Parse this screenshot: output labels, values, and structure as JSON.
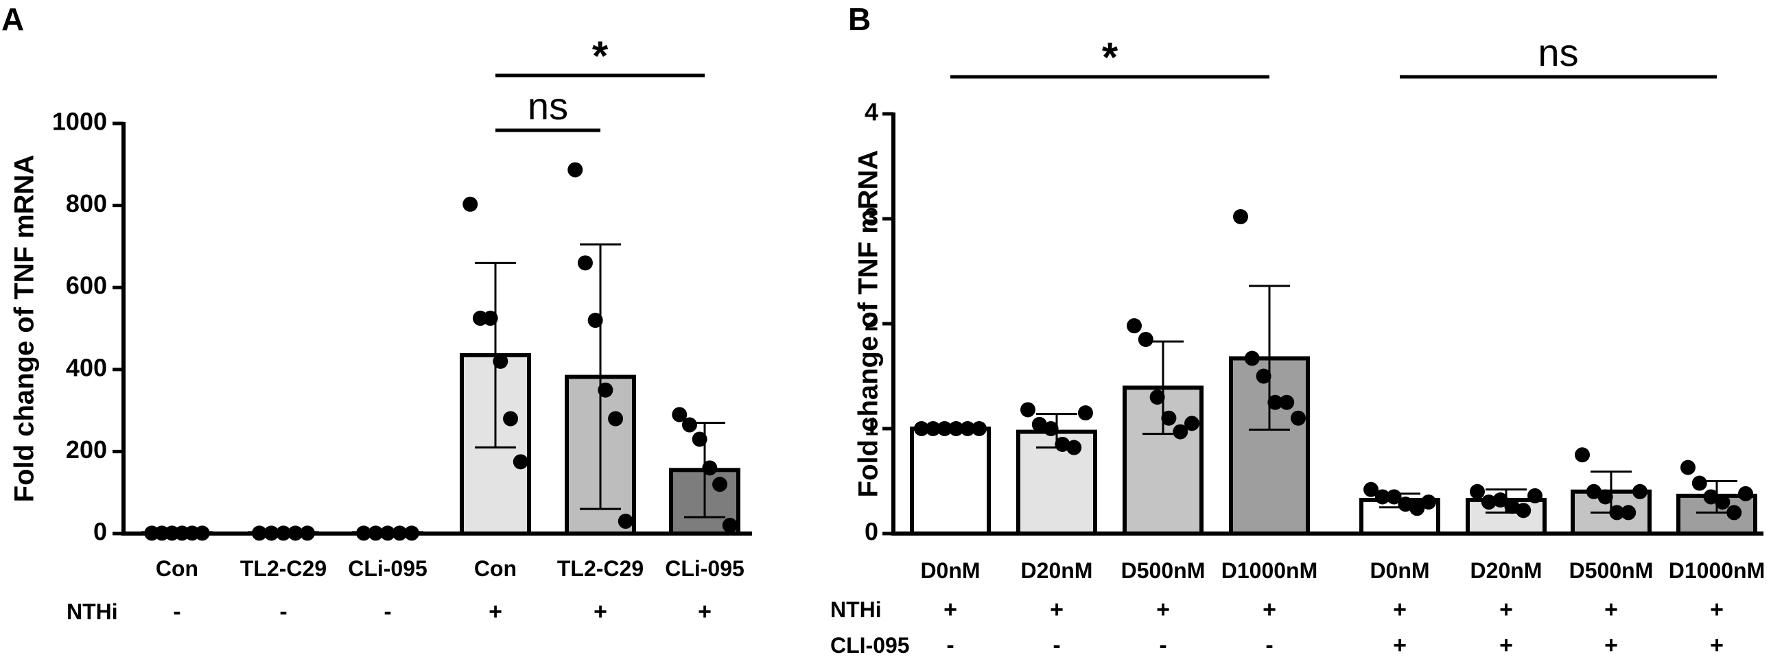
{
  "chart_data": [
    {
      "type": "bar",
      "panel_label": "A",
      "ylabel": "Fold change of TNF mRNA",
      "ylim": [
        0,
        1000
      ],
      "yticks": [
        0,
        200,
        400,
        600,
        800,
        1000
      ],
      "categories": [
        "Con",
        "TL2-C29",
        "CLi-095",
        "Con",
        "TL2-C29",
        "CLi-095"
      ],
      "values": [
        1,
        1,
        1,
        435,
        382,
        155
      ],
      "error_low": [
        1,
        1,
        1,
        210,
        60,
        40
      ],
      "error_high": [
        1,
        1,
        1,
        660,
        705,
        270
      ],
      "points": [
        [
          1,
          1,
          1,
          1,
          1,
          1
        ],
        [
          1,
          1,
          1,
          1,
          1
        ],
        [
          1,
          1,
          1,
          1,
          1
        ],
        [
          803,
          525,
          525,
          420,
          280,
          175
        ],
        [
          887,
          660,
          520,
          350,
          280,
          30
        ],
        [
          290,
          265,
          230,
          160,
          120,
          20
        ]
      ],
      "bar_colors": [
        "#ffffff",
        "#ffffff",
        "#ffffff",
        "#e3e3e3",
        "#bdbdbd",
        "#7d7d7d"
      ],
      "conditions": [
        {
          "label": "NTHi",
          "signs": [
            "-",
            "-",
            "-",
            "+",
            "+",
            "+"
          ]
        }
      ],
      "significance": [
        {
          "from": 3,
          "to": 4,
          "label": "ns",
          "level": 1
        },
        {
          "from": 3,
          "to": 5,
          "label": "*",
          "level": 2
        }
      ]
    },
    {
      "type": "bar",
      "panel_label": "B",
      "ylabel": "Fold change of TNF mRNA",
      "ylim": [
        0,
        4
      ],
      "yticks": [
        0,
        1,
        2,
        3,
        4
      ],
      "categories": [
        "D0nM",
        "D20nM",
        "D500nM",
        "D1000nM",
        "D0nM",
        "D20nM",
        "D500nM",
        "D1000nM"
      ],
      "values": [
        1.0,
        0.97,
        1.39,
        1.67,
        0.32,
        0.32,
        0.4,
        0.36
      ],
      "error_low": [
        1.0,
        0.82,
        0.95,
        0.99,
        0.25,
        0.2,
        0.2,
        0.2
      ],
      "error_high": [
        1.0,
        1.14,
        1.83,
        2.36,
        0.38,
        0.42,
        0.59,
        0.5
      ],
      "points": [
        [
          1,
          1,
          1,
          1,
          1,
          1
        ],
        [
          1.18,
          1.04,
          1.0,
          0.85,
          0.82,
          1.15
        ],
        [
          1.98,
          1.85,
          1.3,
          1.1,
          0.97,
          1.05
        ],
        [
          3.02,
          1.67,
          1.5,
          1.25,
          1.25,
          1.1
        ],
        [
          0.42,
          0.35,
          0.35,
          0.28,
          0.24,
          0.3
        ],
        [
          0.4,
          0.3,
          0.32,
          0.26,
          0.22,
          0.36
        ],
        [
          0.75,
          0.4,
          0.35,
          0.2,
          0.2,
          0.4
        ],
        [
          0.63,
          0.48,
          0.35,
          0.3,
          0.2,
          0.38
        ]
      ],
      "bar_colors": [
        "#ffffff",
        "#e3e3e3",
        "#c4c4c4",
        "#9e9e9e",
        "#ffffff",
        "#e3e3e3",
        "#c4c4c4",
        "#9e9e9e"
      ],
      "conditions": [
        {
          "label": "NTHi",
          "signs": [
            "+",
            "+",
            "+",
            "+",
            "+",
            "+",
            "+",
            "+"
          ]
        },
        {
          "label": "CLI-095",
          "signs": [
            "-",
            "-",
            "-",
            "-",
            "+",
            "+",
            "+",
            "+"
          ]
        }
      ],
      "significance": [
        {
          "from": 0,
          "to": 3,
          "label": "*",
          "level": 1
        },
        {
          "from": 4,
          "to": 7,
          "label": "ns",
          "level": 1
        }
      ]
    }
  ]
}
